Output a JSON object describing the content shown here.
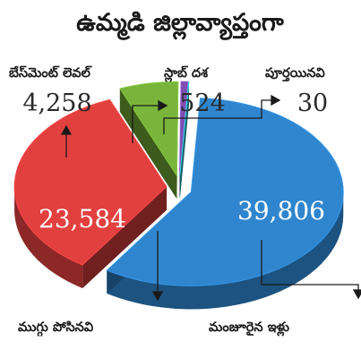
{
  "title": "ఉమ్మడి జిల్లావ్యాప్తంగా",
  "chart_data": {
    "type": "pie",
    "title": "ఉమ్మడి జిల్లావ్యాప్తంగా",
    "legend": "none",
    "slices": [
      {
        "label": "మంజూరైన ఇళ్లు",
        "value": 39806,
        "display": "39,806",
        "color": "#2f86cf"
      },
      {
        "label": "ముగ్గు పోసినవి",
        "value": 23584,
        "display": "23,584",
        "color": "#e2403f"
      },
      {
        "label": "బేస్‌మెంట్ లెవల్",
        "value": 4258,
        "display": "4,258",
        "color": "#79b53a"
      },
      {
        "label": "స్లాబ్ దశ",
        "value": 524,
        "display": "524",
        "color": "#7d4fb0"
      },
      {
        "label": "పూర్తయినవి",
        "value": 30,
        "display": "30",
        "color": "#2fc2d6"
      }
    ]
  }
}
